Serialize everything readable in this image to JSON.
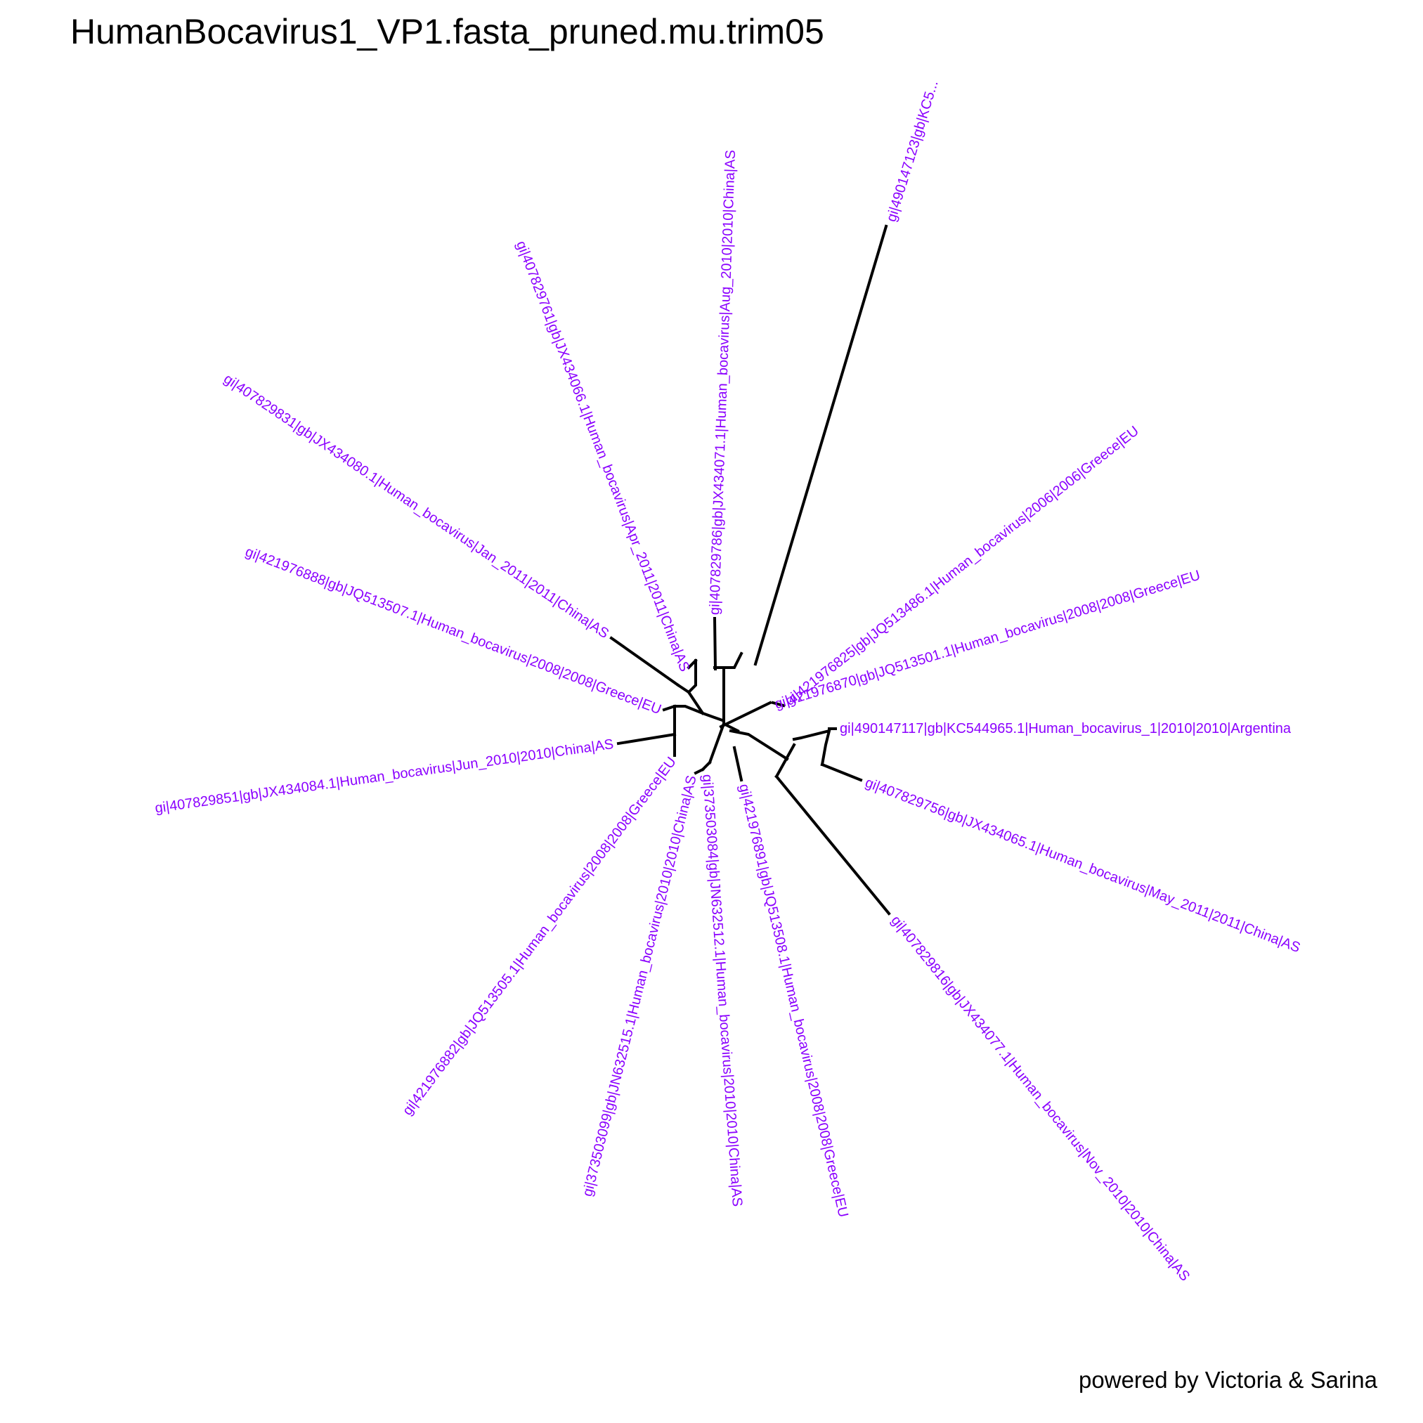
{
  "title": "HumanBocavirus1_VP1.fasta_pruned.mu.trim05",
  "credit": "powered by Victoria & Sarina",
  "colors": {
    "tip_label": "#8B00FF",
    "branch": "#000000",
    "background": "#FFFFFF"
  },
  "tree": {
    "layout": "unrooted",
    "tips": [
      "gi|490147123|gb|KC5...",
      "gi|421976825|gb|JQ513486.1|Human_bocavirus|2006|2006|Greece|EU",
      "gi|421976870|gb|JQ513501.1|Human_bocavirus|2008|2008|Greece|EU",
      "gi|490147117|gb|KC544965.1|Human_bocavirus_1|2010|2010|Argentina",
      "gi|407829756|gb|JX434065.1|Human_bocavirus|May_2011|2011|China|AS",
      "gi|407829816|gb|JX434077.1|Human_bocavirus|Nov_2010|2010|China|AS",
      "gi|421976891|gb|JQ513508.1|Human_bocavirus|2008|2008|Greece|EU",
      "gi|373503084|gb|JN632512.1|Human_bocavirus|2010|2010|China|AS",
      "gi|373503099|gb|JN632515.1|Human_bocavirus|2010|2010|China|AS",
      "gi|421976882|gb|JQ513505.1|Human_bocavirus|2008|2008|Greece|EU",
      "gi|407829851|gb|JX434084.1|Human_bocavirus|Jun_2010|2010|China|AS",
      "gi|421976888|gb|JQ513507.1|Human_bocavirus|2008|2008|Greece|EU",
      "gi|407829831|gb|JX434080.1|Human_bocavirus|Jan_2011|2011|China|AS",
      "gi|407829761|gb|JX434066.1|Human_bocavirus|Apr_2011|2011|China|AS",
      "gi|407829786|gb|JX434071.1|Human_bocavirus|Aug_2010|2010|China|AS"
    ]
  }
}
